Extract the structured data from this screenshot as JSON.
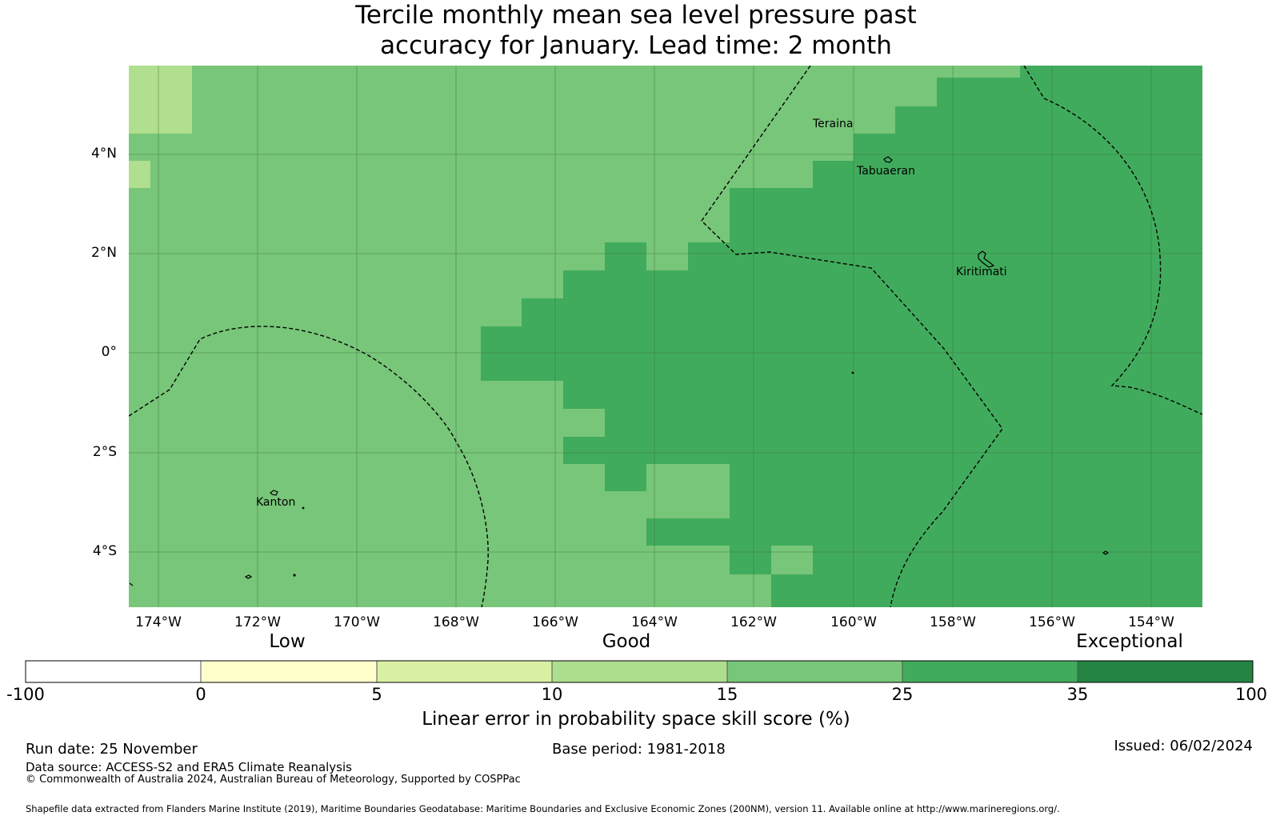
{
  "title": {
    "line1": "Tercile monthly mean sea level pressure past",
    "line2": "accuracy for January. Lead time: 2 month"
  },
  "map": {
    "lat_labels": [
      "4°N",
      "2°N",
      "0°",
      "2°S",
      "4°S"
    ],
    "lon_labels": [
      "174°W",
      "172°W",
      "170°W",
      "168°W",
      "166°W",
      "164°W",
      "162°W",
      "160°W",
      "158°W",
      "156°W",
      "154°W"
    ],
    "places": {
      "teraina": "Teraina",
      "tabuaeran": "Tabuaeran",
      "kiritimati": "Kiritimati",
      "kanton": "Kanton"
    },
    "colors": {
      "lightest": "#afdf8f",
      "mid": "#78c679",
      "dark": "#41ab5d"
    }
  },
  "colorbar": {
    "categories": [
      "Low",
      "Good",
      "Exceptional"
    ],
    "ticks": [
      "-100",
      "0",
      "5",
      "10",
      "15",
      "25",
      "35",
      "100"
    ],
    "colors": [
      "#ffffff",
      "#ffffcc",
      "#d9f0a3",
      "#addd8e",
      "#78c679",
      "#41ab5d",
      "#238443"
    ],
    "label": "Linear error in probability space skill score (%)"
  },
  "footer": {
    "run_date": "Run date: 25 November",
    "base_period": "Base period: 1981-2018",
    "issued": "Issued: 06/02/2024",
    "data_source": "Data source: ACCESS-S2 and ERA5 Climate Reanalysis",
    "copyright": "© Commonwealth of Australia 2024, Australian Bureau of Meteorology, Supported by COSPPac",
    "shapefile": "Shapefile data extracted from Flanders Marine Institute (2019), Maritime Boundaries Geodatabase: Maritime Boundaries and Exclusive Economic Zones (200NM), version 11. Available online at http://www.marineregions.org/."
  }
}
